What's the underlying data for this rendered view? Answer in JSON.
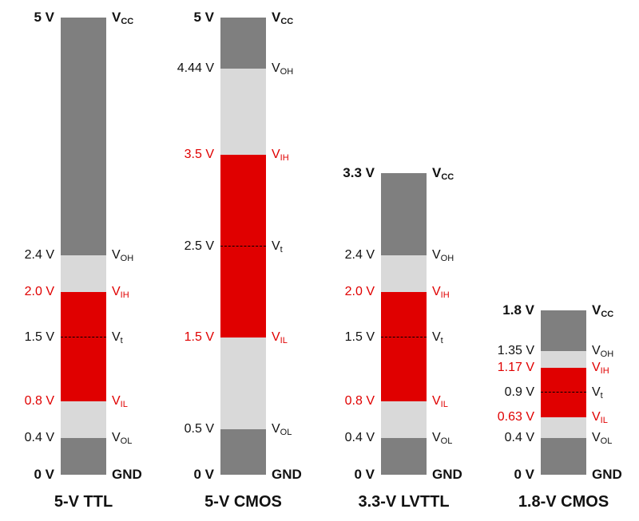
{
  "colors": {
    "dark_gray": "#7f7f7f",
    "light_gray": "#d9d9d9",
    "red": "#e00000",
    "black_text": "#111111"
  },
  "columns": [
    {
      "id": "ttl5",
      "caption": "5-V TTL",
      "levels": [
        {
          "value": 5.0,
          "text": "5 V",
          "sig_main": "V",
          "sig_sub": "CC",
          "red": false,
          "bold": true
        },
        {
          "value": 2.4,
          "text": "2.4 V",
          "sig_main": "V",
          "sig_sub": "OH",
          "red": false,
          "bold": false
        },
        {
          "value": 2.0,
          "text": "2.0 V",
          "sig_main": "V",
          "sig_sub": "IH",
          "red": true,
          "bold": false
        },
        {
          "value": 1.5,
          "text": "1.5 V",
          "sig_main": "V",
          "sig_sub": "t",
          "red": false,
          "bold": false
        },
        {
          "value": 0.8,
          "text": "0.8 V",
          "sig_main": "V",
          "sig_sub": "IL",
          "red": true,
          "bold": false
        },
        {
          "value": 0.4,
          "text": "0.4 V",
          "sig_main": "V",
          "sig_sub": "OL",
          "red": false,
          "bold": false
        },
        {
          "value": 0.0,
          "text": "0 V",
          "sig_main": "GND",
          "sig_sub": "",
          "red": false,
          "bold": true
        }
      ]
    },
    {
      "id": "cmos5",
      "caption": "5-V CMOS",
      "levels": [
        {
          "value": 5.0,
          "text": "5 V",
          "sig_main": "V",
          "sig_sub": "CC",
          "red": false,
          "bold": true
        },
        {
          "value": 4.44,
          "text": "4.44 V",
          "sig_main": "V",
          "sig_sub": "OH",
          "red": false,
          "bold": false
        },
        {
          "value": 3.5,
          "text": "3.5 V",
          "sig_main": "V",
          "sig_sub": "IH",
          "red": true,
          "bold": false
        },
        {
          "value": 2.5,
          "text": "2.5 V",
          "sig_main": "V",
          "sig_sub": "t",
          "red": false,
          "bold": false
        },
        {
          "value": 1.5,
          "text": "1.5 V",
          "sig_main": "V",
          "sig_sub": "IL",
          "red": true,
          "bold": false
        },
        {
          "value": 0.5,
          "text": "0.5 V",
          "sig_main": "V",
          "sig_sub": "OL",
          "red": false,
          "bold": false
        },
        {
          "value": 0.0,
          "text": "0 V",
          "sig_main": "GND",
          "sig_sub": "",
          "red": false,
          "bold": true
        }
      ]
    },
    {
      "id": "lvttl33",
      "caption": "3.3-V LVTTL",
      "levels": [
        {
          "value": 3.3,
          "text": "3.3 V",
          "sig_main": "V",
          "sig_sub": "CC",
          "red": false,
          "bold": true
        },
        {
          "value": 2.4,
          "text": "2.4 V",
          "sig_main": "V",
          "sig_sub": "OH",
          "red": false,
          "bold": false
        },
        {
          "value": 2.0,
          "text": "2.0 V",
          "sig_main": "V",
          "sig_sub": "IH",
          "red": true,
          "bold": false
        },
        {
          "value": 1.5,
          "text": "1.5 V",
          "sig_main": "V",
          "sig_sub": "t",
          "red": false,
          "bold": false
        },
        {
          "value": 0.8,
          "text": "0.8 V",
          "sig_main": "V",
          "sig_sub": "IL",
          "red": true,
          "bold": false
        },
        {
          "value": 0.4,
          "text": "0.4 V",
          "sig_main": "V",
          "sig_sub": "OL",
          "red": false,
          "bold": false
        },
        {
          "value": 0.0,
          "text": "0 V",
          "sig_main": "GND",
          "sig_sub": "",
          "red": false,
          "bold": true
        }
      ]
    },
    {
      "id": "cmos18",
      "caption": "1.8-V CMOS",
      "levels": [
        {
          "value": 1.8,
          "text": "1.8 V",
          "sig_main": "V",
          "sig_sub": "CC",
          "red": false,
          "bold": true
        },
        {
          "value": 1.35,
          "text": "1.35 V",
          "sig_main": "V",
          "sig_sub": "OH",
          "red": false,
          "bold": false
        },
        {
          "value": 1.17,
          "text": "1.17 V",
          "sig_main": "V",
          "sig_sub": "IH",
          "red": true,
          "bold": false
        },
        {
          "value": 0.9,
          "text": "0.9 V",
          "sig_main": "V",
          "sig_sub": "t",
          "red": false,
          "bold": false
        },
        {
          "value": 0.63,
          "text": "0.63 V",
          "sig_main": "V",
          "sig_sub": "IL",
          "red": true,
          "bold": false
        },
        {
          "value": 0.4,
          "text": "0.4 V",
          "sig_main": "V",
          "sig_sub": "OL",
          "red": false,
          "bold": false
        },
        {
          "value": 0.0,
          "text": "0 V",
          "sig_main": "GND",
          "sig_sub": "",
          "red": false,
          "bold": true
        }
      ]
    }
  ]
}
